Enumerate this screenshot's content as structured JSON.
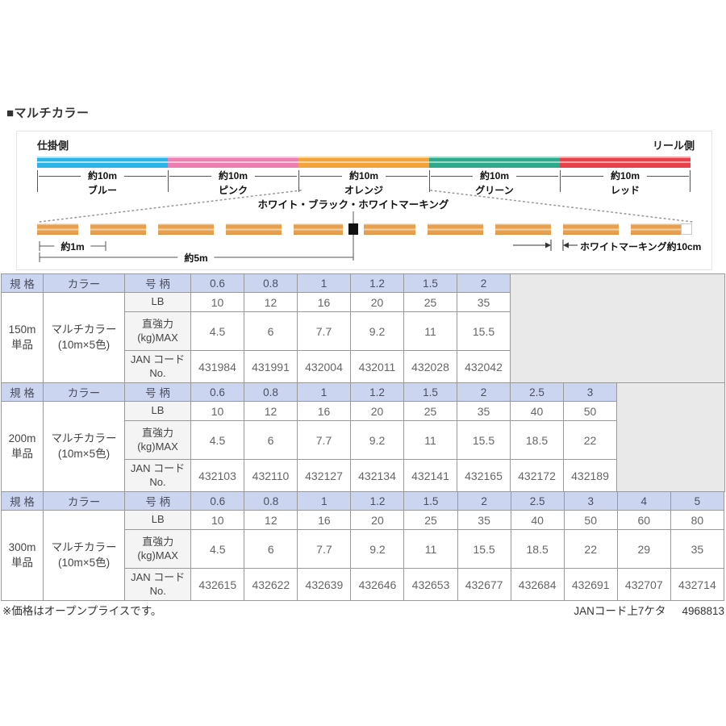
{
  "page": {
    "title": "■マルチカラー"
  },
  "diagram": {
    "left_label": "仕掛側",
    "right_label": "リール側",
    "segment_length": "約10m",
    "segments": [
      {
        "key": "blue",
        "name": "ブルー",
        "color": "#2ab4e8",
        "light": "#aee4f8"
      },
      {
        "key": "pink",
        "name": "ピンク",
        "color": "#ef7fb3",
        "light": "#fac6dd"
      },
      {
        "key": "orange",
        "name": "オレンジ",
        "color": "#f2a33c",
        "light": "#f9d69e"
      },
      {
        "key": "green",
        "name": "グリーン",
        "color": "#2fa98b",
        "light": "#9cdac8"
      },
      {
        "key": "red",
        "name": "レッド",
        "color": "#e8414a",
        "light": "#f7a6aa"
      }
    ],
    "marking_label": "ホワイト・ブラック・ホワイトマーキング",
    "dim_1m": "約1m",
    "dim_5m": "約5m",
    "white_marking_label": "ホワイトマーキング約10cm",
    "bar_color": "#e7a050"
  },
  "table_headers": {
    "spec": "規 格",
    "color": "カラー",
    "size": "号 柄"
  },
  "row_labels": {
    "lb": "LB",
    "strength": "直強力\n(kg)MAX",
    "jan": "JAN コード\nNo."
  },
  "tables": [
    {
      "key": "150m",
      "spec": "150m\n単品",
      "color": "マルチカラー\n(10m×5色)",
      "sizes": [
        "0.6",
        "0.8",
        "1",
        "1.2",
        "1.5",
        "2"
      ],
      "lb": [
        "10",
        "12",
        "16",
        "20",
        "25",
        "35"
      ],
      "strength": [
        "4.5",
        "6",
        "7.7",
        "9.2",
        "11",
        "15.5"
      ],
      "jan": [
        "431984",
        "431991",
        "432004",
        "432011",
        "432028",
        "432042"
      ]
    },
    {
      "key": "200m",
      "spec": "200m\n単品",
      "color": "マルチカラー\n(10m×5色)",
      "sizes": [
        "0.6",
        "0.8",
        "1",
        "1.2",
        "1.5",
        "2",
        "2.5",
        "3"
      ],
      "lb": [
        "10",
        "12",
        "16",
        "20",
        "25",
        "35",
        "40",
        "50"
      ],
      "strength": [
        "4.5",
        "6",
        "7.7",
        "9.2",
        "11",
        "15.5",
        "18.5",
        "22"
      ],
      "jan": [
        "432103",
        "432110",
        "432127",
        "432134",
        "432141",
        "432165",
        "432172",
        "432189"
      ]
    },
    {
      "key": "300m",
      "spec": "300m\n単品",
      "color": "マルチカラー\n(10m×5色)",
      "sizes": [
        "0.6",
        "0.8",
        "1",
        "1.2",
        "1.5",
        "2",
        "2.5",
        "3",
        "4",
        "5"
      ],
      "lb": [
        "10",
        "12",
        "16",
        "20",
        "25",
        "35",
        "40",
        "50",
        "60",
        "80"
      ],
      "strength": [
        "4.5",
        "6",
        "7.7",
        "9.2",
        "11",
        "15.5",
        "18.5",
        "22",
        "29",
        "35"
      ],
      "jan": [
        "432615",
        "432622",
        "432639",
        "432646",
        "432653",
        "432677",
        "432684",
        "432691",
        "432707",
        "432714"
      ]
    }
  ],
  "footer": {
    "note": "※価格はオープンプライスです。",
    "jan_label": "JANコード上7ケタ",
    "jan_value": "4968813"
  },
  "colors": {
    "header_bg": "#ccd5f0",
    "label_bg": "#f4f4f4",
    "filler_bg": "#e9e9e9",
    "border": "#999999",
    "marking_bar": "#e7a050"
  }
}
